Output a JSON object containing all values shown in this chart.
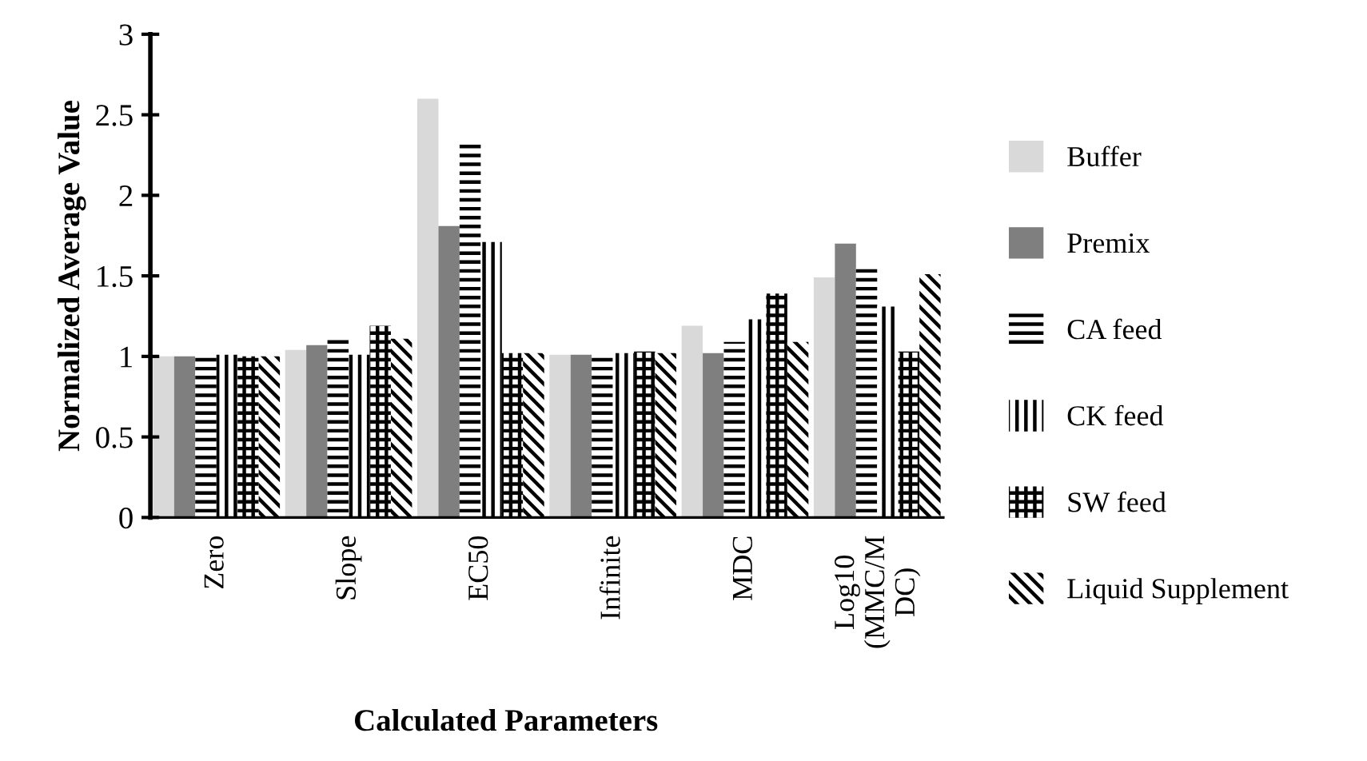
{
  "chart_data": {
    "type": "bar",
    "xlabel": "Calculated Parameters",
    "ylabel": "Normalized Average Value",
    "categories": [
      "Zero",
      "Slope",
      "EC50",
      "Infinite",
      "MDC",
      "Log10\n(MMC/M\nDC)"
    ],
    "series": [
      {
        "name": "Buffer",
        "color": "#d9d9d9",
        "values": [
          1.0,
          1.04,
          2.6,
          1.01,
          1.19,
          1.49
        ]
      },
      {
        "name": "Premix",
        "color": "#7f7f7f",
        "values": [
          1.0,
          1.07,
          1.81,
          1.01,
          1.02,
          1.7
        ]
      },
      {
        "name": "CA feed",
        "color": "#ffffff",
        "values": [
          1.01,
          1.11,
          2.32,
          1.02,
          1.09,
          1.55
        ]
      },
      {
        "name": "CK feed",
        "color": "#ffffff",
        "values": [
          1.01,
          1.01,
          1.71,
          1.02,
          1.23,
          1.31
        ]
      },
      {
        "name": "SW feed",
        "color": "#ffffff",
        "values": [
          1.0,
          1.19,
          1.02,
          1.03,
          1.39,
          1.03
        ]
      },
      {
        "name": "Liquid Supplement",
        "color": "#ffffff",
        "values": [
          1.0,
          1.11,
          1.02,
          1.02,
          1.09,
          1.51
        ]
      }
    ],
    "ylim": [
      0,
      3
    ],
    "yticks": [
      0,
      0.5,
      1,
      1.5,
      2,
      2.5,
      3
    ],
    "grid": false,
    "legend": "right"
  }
}
